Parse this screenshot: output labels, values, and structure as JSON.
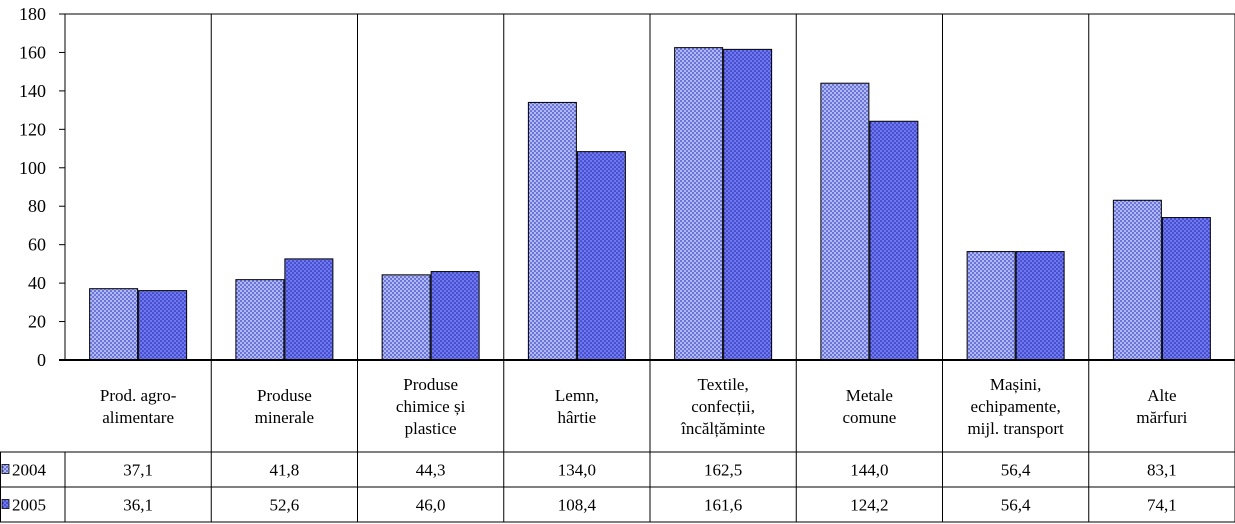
{
  "chart_data": {
    "type": "bar",
    "categories": [
      [
        "Prod. agro-",
        "alimentare"
      ],
      [
        "Produse",
        "minerale"
      ],
      [
        "Produse",
        "chimice și",
        "plastice"
      ],
      [
        "Lemn,",
        "hârtie"
      ],
      [
        "Textile,",
        "confecții,",
        "încălțăminte"
      ],
      [
        "Metale",
        "comune"
      ],
      [
        "Mașini,",
        "echipamente,",
        "mijl. transport"
      ],
      [
        "Alte",
        "mărfuri"
      ]
    ],
    "series": [
      {
        "name": "2004",
        "values": [
          37.1,
          41.8,
          44.3,
          134.0,
          162.5,
          144.0,
          56.4,
          83.1
        ],
        "labels": [
          "37,1",
          "41,8",
          "44,3",
          "134,0",
          "162,5",
          "144,0",
          "56,4",
          "83,1"
        ],
        "color": "#b3b9f0",
        "dot": "#3344cc"
      },
      {
        "name": "2005",
        "values": [
          36.1,
          52.6,
          46.0,
          108.4,
          161.6,
          124.2,
          56.4,
          74.1
        ],
        "labels": [
          "36,1",
          "52,6",
          "46,0",
          "108,4",
          "161,6",
          "124,2",
          "56,4",
          "74,1"
        ],
        "color": "#6f78ee",
        "dot": "#1a22aa"
      }
    ],
    "yticks": [
      0,
      20,
      40,
      60,
      80,
      100,
      120,
      140,
      160,
      180
    ],
    "ylim": [
      0,
      180
    ],
    "grid": false,
    "legend": "data-table-left",
    "data_table": true
  }
}
